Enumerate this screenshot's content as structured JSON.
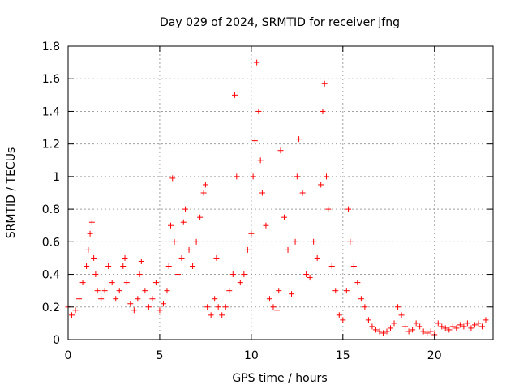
{
  "chart_data": {
    "type": "scatter",
    "title": "Day 029 of 2024, SRMTID for receiver jfng",
    "xlabel": "GPS time / hours",
    "ylabel": "SRMTID / TECUs",
    "xlim": [
      0,
      23.2
    ],
    "ylim": [
      0,
      1.8
    ],
    "xticks": [
      0,
      5,
      10,
      15,
      20
    ],
    "xtick_labels": [
      "0",
      "5",
      "10",
      "15",
      "20"
    ],
    "yticks": [
      0,
      0.2,
      0.4,
      0.6,
      0.8,
      1,
      1.2,
      1.4,
      1.6,
      1.8
    ],
    "ytick_labels": [
      "0",
      "0.2",
      "0.4",
      "0.6",
      "0.8",
      "1",
      "1.2",
      "1.4",
      "1.6",
      "1.8"
    ],
    "grid": true,
    "marker": "+",
    "marker_color": "#ff0000",
    "series": [
      {
        "name": "jfng",
        "x": [
          0.0,
          0.2,
          0.4,
          0.6,
          0.8,
          1.0,
          1.1,
          1.2,
          1.3,
          1.4,
          1.5,
          1.6,
          1.8,
          2.0,
          2.2,
          2.4,
          2.6,
          2.8,
          3.0,
          3.1,
          3.2,
          3.4,
          3.6,
          3.8,
          3.9,
          4.0,
          4.2,
          4.4,
          4.6,
          4.8,
          5.0,
          5.2,
          5.4,
          5.5,
          5.6,
          5.7,
          5.8,
          6.0,
          6.2,
          6.3,
          6.4,
          6.6,
          6.8,
          7.0,
          7.2,
          7.4,
          7.5,
          7.6,
          7.8,
          8.0,
          8.1,
          8.2,
          8.4,
          8.6,
          8.8,
          9.0,
          9.1,
          9.2,
          9.4,
          9.6,
          9.8,
          10.0,
          10.1,
          10.2,
          10.3,
          10.4,
          10.5,
          10.6,
          10.8,
          11.0,
          11.2,
          11.4,
          11.5,
          11.6,
          11.8,
          12.0,
          12.2,
          12.4,
          12.5,
          12.6,
          12.8,
          13.0,
          13.2,
          13.4,
          13.6,
          13.8,
          13.9,
          14.0,
          14.1,
          14.2,
          14.4,
          14.6,
          14.8,
          15.0,
          15.2,
          15.3,
          15.4,
          15.6,
          15.8,
          16.0,
          16.2,
          16.4,
          16.6,
          16.8,
          17.0,
          17.2,
          17.4,
          17.6,
          17.8,
          18.0,
          18.2,
          18.4,
          18.6,
          18.8,
          19.0,
          19.2,
          19.4,
          19.6,
          19.8,
          20.0,
          20.2,
          20.4,
          20.6,
          20.8,
          21.0,
          21.2,
          21.4,
          21.6,
          21.8,
          22.0,
          22.2,
          22.4,
          22.6,
          22.8
        ],
        "y": [
          0.2,
          0.15,
          0.18,
          0.25,
          0.35,
          0.45,
          0.55,
          0.65,
          0.72,
          0.5,
          0.4,
          0.3,
          0.25,
          0.3,
          0.45,
          0.35,
          0.25,
          0.3,
          0.45,
          0.5,
          0.35,
          0.22,
          0.18,
          0.25,
          0.4,
          0.48,
          0.3,
          0.2,
          0.25,
          0.35,
          0.18,
          0.22,
          0.3,
          0.45,
          0.7,
          0.99,
          0.6,
          0.4,
          0.5,
          0.72,
          0.8,
          0.55,
          0.45,
          0.6,
          0.75,
          0.9,
          0.95,
          0.2,
          0.15,
          0.25,
          0.5,
          0.2,
          0.15,
          0.2,
          0.3,
          0.4,
          1.5,
          1.0,
          0.35,
          0.4,
          0.55,
          0.65,
          1.0,
          1.22,
          1.7,
          1.4,
          1.1,
          0.9,
          0.7,
          0.25,
          0.2,
          0.18,
          0.3,
          1.16,
          0.75,
          0.55,
          0.28,
          0.6,
          1.0,
          1.23,
          0.9,
          0.4,
          0.38,
          0.6,
          0.5,
          0.95,
          1.4,
          1.57,
          1.0,
          0.8,
          0.45,
          0.3,
          0.15,
          0.12,
          0.3,
          0.8,
          0.6,
          0.45,
          0.35,
          0.25,
          0.2,
          0.12,
          0.08,
          0.06,
          0.05,
          0.04,
          0.05,
          0.07,
          0.1,
          0.2,
          0.15,
          0.08,
          0.05,
          0.06,
          0.1,
          0.08,
          0.05,
          0.04,
          0.05,
          0.03,
          0.1,
          0.08,
          0.07,
          0.06,
          0.08,
          0.07,
          0.09,
          0.08,
          0.1,
          0.07,
          0.09,
          0.1,
          0.08,
          0.12
        ]
      }
    ]
  }
}
